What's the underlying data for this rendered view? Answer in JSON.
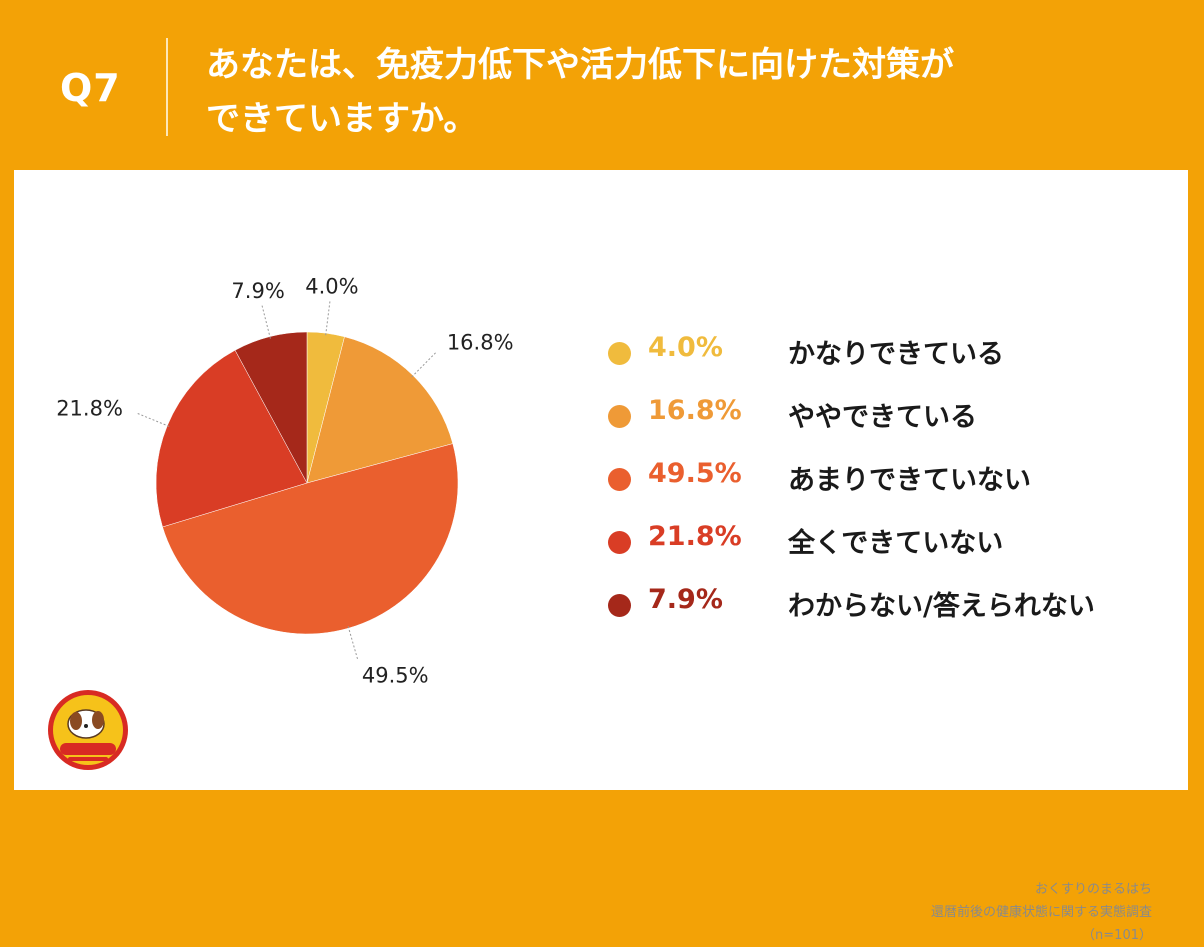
{
  "header": {
    "qnum": "Q7",
    "question_line1": "あなたは、免疫力低下や活力低下に向けた対策が",
    "question_line2": "できていますか。"
  },
  "chart_data": {
    "type": "pie",
    "title": "",
    "slices": [
      {
        "label": "かなりできている",
        "value": 4.0,
        "display": "4.0%",
        "color": "#f0bb3d"
      },
      {
        "label": "ややできている",
        "value": 16.8,
        "display": "16.8%",
        "color": "#ef9a37"
      },
      {
        "label": "あまりできていない",
        "value": 49.5,
        "display": "49.5%",
        "color": "#ea5f2e"
      },
      {
        "label": "全くできていない",
        "value": 21.8,
        "display": "21.8%",
        "color": "#d93d25"
      },
      {
        "label": "わからない/答えられない",
        "value": 7.9,
        "display": "7.9%",
        "color": "#a5281a"
      }
    ],
    "legend_position": "right"
  },
  "source": {
    "line1": "おくすりのまるはち",
    "line2": "還暦前後の健康状態に関する実態調査",
    "line3": "（n=101）"
  }
}
